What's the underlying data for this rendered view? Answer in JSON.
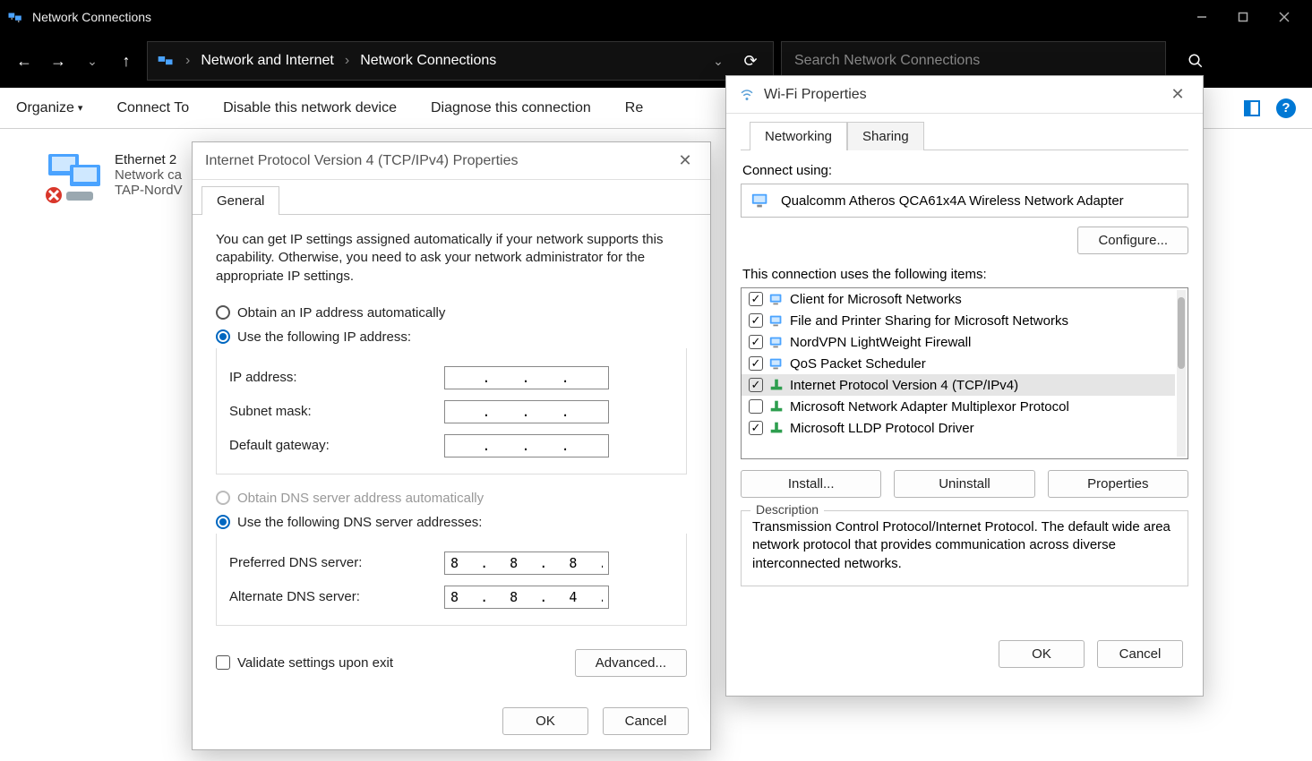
{
  "window": {
    "title": "Network Connections",
    "min_label": "Minimize",
    "max_label": "Maximize",
    "close_label": "Close"
  },
  "address": {
    "crumb1": "Network and Internet",
    "crumb2": "Network Connections",
    "search_placeholder": "Search Network Connections"
  },
  "toolbar": {
    "organize": "Organize",
    "connect_to": "Connect To",
    "disable": "Disable this network device",
    "diagnose": "Diagnose this connection",
    "rename_partial": "Re"
  },
  "connection": {
    "name": "Ethernet 2",
    "status": "Network ca",
    "device": "TAP-NordV"
  },
  "ipv4": {
    "title": "Internet Protocol Version 4 (TCP/IPv4) Properties",
    "tab_general": "General",
    "desc": "You can get IP settings assigned automatically if your network supports this capability. Otherwise, you need to ask your network administrator for the appropriate IP settings.",
    "radio_auto_ip": "Obtain an IP address automatically",
    "radio_static_ip": "Use the following IP address:",
    "label_ip": "IP address:",
    "label_mask": "Subnet mask:",
    "label_gateway": "Default gateway:",
    "value_ip": " .   .   . ",
    "value_mask": " .   .   . ",
    "value_gateway": " .   .   . ",
    "radio_auto_dns": "Obtain DNS server address automatically",
    "radio_static_dns": "Use the following DNS server addresses:",
    "label_pref_dns": "Preferred DNS server:",
    "label_alt_dns": "Alternate DNS server:",
    "value_pref_dns": "8  .  8  .  8  .  8",
    "value_alt_dns": "8  .  8  .  4  .  4",
    "validate": "Validate settings upon exit",
    "advanced": "Advanced...",
    "ok": "OK",
    "cancel": "Cancel"
  },
  "wifi": {
    "title": "Wi-Fi Properties",
    "tab_networking": "Networking",
    "tab_sharing": "Sharing",
    "connect_using": "Connect using:",
    "adapter": "Qualcomm Atheros QCA61x4A Wireless Network Adapter",
    "configure": "Configure...",
    "uses_label": "This connection uses the following items:",
    "items": [
      {
        "checked": true,
        "kind": "client",
        "label": "Client for Microsoft Networks"
      },
      {
        "checked": true,
        "kind": "service",
        "label": "File and Printer Sharing for Microsoft Networks"
      },
      {
        "checked": true,
        "kind": "service",
        "label": "NordVPN LightWeight Firewall"
      },
      {
        "checked": true,
        "kind": "service",
        "label": "QoS Packet Scheduler"
      },
      {
        "checked": true,
        "kind": "protocol",
        "label": "Internet Protocol Version 4 (TCP/IPv4)",
        "selected": true
      },
      {
        "checked": false,
        "kind": "protocol",
        "label": "Microsoft Network Adapter Multiplexor Protocol"
      },
      {
        "checked": true,
        "kind": "protocol",
        "label": "Microsoft LLDP Protocol Driver"
      }
    ],
    "install": "Install...",
    "uninstall": "Uninstall",
    "properties": "Properties",
    "desc_legend": "Description",
    "desc_text": "Transmission Control Protocol/Internet Protocol. The default wide area network protocol that provides communication across diverse interconnected networks.",
    "ok": "OK",
    "cancel": "Cancel"
  }
}
